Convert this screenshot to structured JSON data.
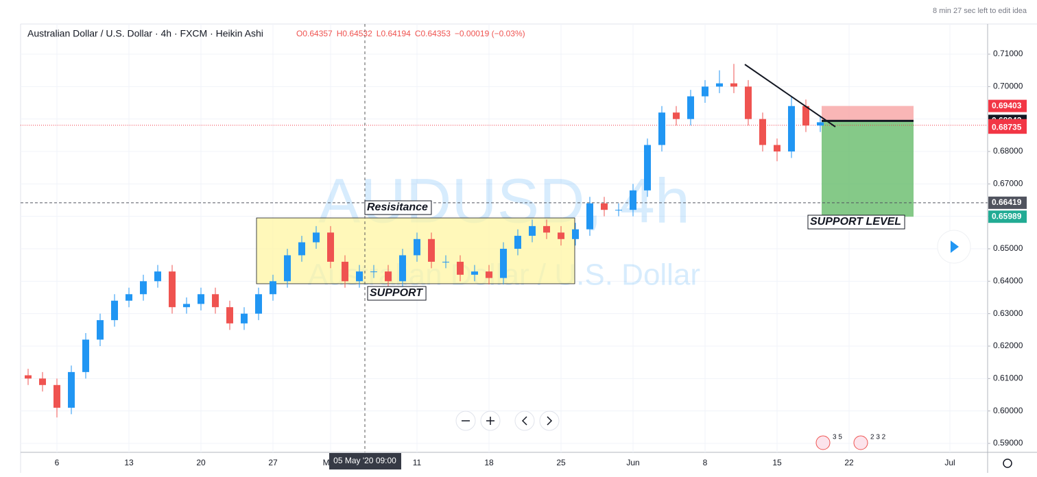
{
  "chart_data": {
    "type": "candlestick",
    "title": "Australian Dollar / U.S. Dollar · 4h · FXCM · Heikin Ashi",
    "ohlc_legend": [
      "O0.64357",
      "H0.64532",
      "L0.64194",
      "C0.64353",
      "−0.00019 (−0.03%)"
    ],
    "edit_notice": "8 min 27 sec left to edit idea",
    "watermark": [
      "AUDUSD, 4h",
      "Australian Dollar / U.S. Dollar"
    ],
    "annotations": [
      "Resisitance",
      "SUPPORT",
      "SUPPORT LEVEL"
    ],
    "crosshair_label": "05 May '20   09:00",
    "event_badges": [
      "3 5",
      "2 3 2"
    ],
    "categories": [
      null,
      null,
      "6",
      null,
      null,
      null,
      null,
      "13",
      null,
      null,
      null,
      null,
      "20",
      null,
      null,
      null,
      null,
      "27",
      null,
      null,
      null,
      "May",
      null,
      null,
      null,
      null,
      null,
      "11",
      null,
      null,
      null,
      null,
      "18",
      null,
      null,
      null,
      null,
      "25",
      null,
      null,
      null,
      null,
      "Jun",
      null,
      null,
      null,
      null,
      "8",
      null,
      null,
      null,
      null,
      "15",
      null,
      null,
      null,
      null,
      "22",
      null,
      null,
      null,
      null,
      null,
      null,
      "Jul",
      null,
      null
    ],
    "open": [
      0.611,
      0.61,
      0.608,
      0.601,
      0.612,
      0.622,
      0.628,
      0.634,
      0.636,
      0.64,
      0.643,
      0.632,
      0.633,
      0.636,
      0.632,
      0.627,
      0.63,
      0.636,
      0.64,
      0.648,
      0.652,
      0.655,
      0.646,
      0.64,
      0.643,
      0.643,
      0.64,
      0.648,
      0.653,
      0.646,
      0.646,
      0.642,
      0.643,
      0.641,
      0.65,
      0.654,
      0.657,
      0.655,
      0.653,
      0.656,
      0.664,
      0.662,
      0.662,
      0.668,
      0.682,
      0.692,
      0.69,
      0.697,
      0.7,
      0.701,
      0.7,
      0.69,
      0.682,
      0.68,
      0.694,
      0.688,
      null,
      null,
      null,
      null,
      null,
      null,
      null,
      null,
      null,
      null,
      null
    ],
    "high": [
      0.613,
      0.612,
      0.61,
      0.614,
      0.624,
      0.63,
      0.636,
      0.638,
      0.642,
      0.645,
      0.645,
      0.635,
      0.638,
      0.638,
      0.634,
      0.632,
      0.638,
      0.642,
      0.65,
      0.654,
      0.657,
      0.657,
      0.648,
      0.645,
      0.645,
      0.645,
      0.65,
      0.655,
      0.655,
      0.648,
      0.648,
      0.645,
      0.645,
      0.652,
      0.656,
      0.659,
      0.659,
      0.657,
      0.658,
      0.666,
      0.666,
      0.664,
      0.67,
      0.684,
      0.694,
      0.694,
      0.699,
      0.702,
      0.705,
      0.707,
      0.702,
      0.692,
      0.684,
      0.697,
      0.696,
      0.691,
      null,
      null,
      null,
      null,
      null,
      null,
      null,
      null,
      null,
      null,
      null
    ],
    "low": [
      0.608,
      0.606,
      0.598,
      0.599,
      0.61,
      0.62,
      0.626,
      0.632,
      0.634,
      0.638,
      0.63,
      0.63,
      0.631,
      0.63,
      0.625,
      0.625,
      0.628,
      0.634,
      0.638,
      0.646,
      0.65,
      0.644,
      0.638,
      0.638,
      0.641,
      0.638,
      0.638,
      0.646,
      0.644,
      0.644,
      0.64,
      0.64,
      0.639,
      0.639,
      0.648,
      0.652,
      0.653,
      0.651,
      0.651,
      0.654,
      0.66,
      0.66,
      0.66,
      0.666,
      0.68,
      0.688,
      0.688,
      0.695,
      0.698,
      0.698,
      0.688,
      0.68,
      0.677,
      0.678,
      0.686,
      0.686,
      null,
      null,
      null,
      null,
      null,
      null,
      null,
      null,
      null,
      null,
      null
    ],
    "close": [
      0.61,
      0.608,
      0.601,
      0.612,
      0.622,
      0.628,
      0.634,
      0.636,
      0.64,
      0.643,
      0.632,
      0.633,
      0.636,
      0.632,
      0.627,
      0.63,
      0.636,
      0.64,
      0.648,
      0.652,
      0.655,
      0.646,
      0.64,
      0.643,
      0.643,
      0.64,
      0.648,
      0.653,
      0.646,
      0.646,
      0.642,
      0.643,
      0.641,
      0.65,
      0.654,
      0.657,
      0.655,
      0.653,
      0.656,
      0.664,
      0.662,
      0.662,
      0.668,
      0.682,
      0.692,
      0.69,
      0.697,
      0.7,
      0.701,
      0.7,
      0.69,
      0.682,
      0.68,
      0.694,
      0.688,
      0.689,
      null,
      null,
      null,
      null,
      null,
      null,
      null,
      null,
      null,
      null,
      null
    ],
    "up_color": "#2196f3",
    "down_color": "#ef5350",
    "ylim": [
      0.58725,
      0.7193
    ],
    "yticks": [
      {
        "value": 0.59,
        "label": "0.59000"
      },
      {
        "value": 0.6,
        "label": "0.60000"
      },
      {
        "value": 0.61,
        "label": "0.61000"
      },
      {
        "value": 0.62,
        "label": "0.62000"
      },
      {
        "value": 0.63,
        "label": "0.63000"
      },
      {
        "value": 0.64,
        "label": "0.64000"
      },
      {
        "value": 0.65,
        "label": "0.65000"
      },
      {
        "value": 0.66,
        "label": "0.66000"
      },
      {
        "value": 0.67,
        "label": "0.67000"
      },
      {
        "value": 0.68,
        "label": "0.68000"
      },
      {
        "value": 0.69,
        "label": "0.69000"
      },
      {
        "value": 0.7,
        "label": "0.70000"
      },
      {
        "value": 0.71,
        "label": "0.71000"
      }
    ],
    "grid": true,
    "price_lines": [
      {
        "value": 0.69403,
        "color": "#f23645"
      },
      {
        "value": 0.68942,
        "color": "#131722"
      },
      {
        "value": 0.68809,
        "color": "#f23645"
      },
      {
        "value": 0.68735,
        "color": "#f23645"
      },
      {
        "value": 0.66419,
        "color": "#50535e"
      },
      {
        "value": 0.65989,
        "color": "#22ab94"
      }
    ]
  }
}
